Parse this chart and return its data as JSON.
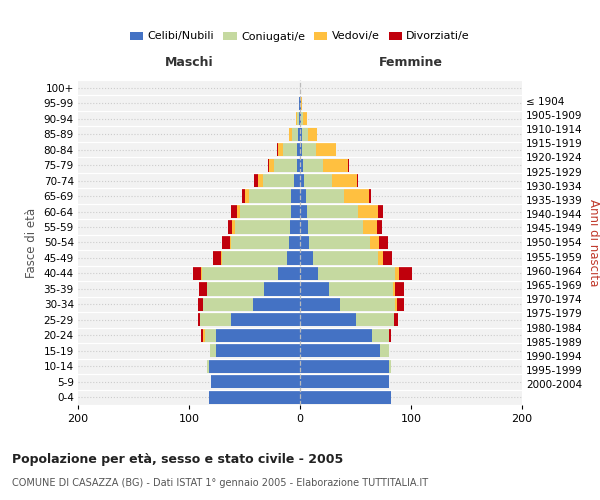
{
  "age_groups": [
    "100+",
    "95-99",
    "90-94",
    "85-89",
    "80-84",
    "75-79",
    "70-74",
    "65-69",
    "60-64",
    "55-59",
    "50-54",
    "45-49",
    "40-44",
    "35-39",
    "30-34",
    "25-29",
    "20-24",
    "15-19",
    "10-14",
    "5-9",
    "0-4"
  ],
  "birth_years": [
    "≤ 1904",
    "1905-1909",
    "1910-1914",
    "1915-1919",
    "1920-1924",
    "1925-1929",
    "1930-1934",
    "1935-1939",
    "1940-1944",
    "1945-1949",
    "1950-1954",
    "1955-1959",
    "1960-1964",
    "1965-1969",
    "1970-1974",
    "1975-1979",
    "1980-1984",
    "1985-1989",
    "1990-1994",
    "1995-1999",
    "2000-2004"
  ],
  "male": {
    "celibi": [
      0,
      1,
      1,
      2,
      3,
      3,
      5,
      8,
      8,
      9,
      10,
      12,
      20,
      32,
      42,
      62,
      76,
      76,
      82,
      80,
      82
    ],
    "coniugati": [
      0,
      0,
      2,
      5,
      12,
      20,
      28,
      38,
      46,
      50,
      52,
      58,
      68,
      52,
      45,
      28,
      10,
      5,
      2,
      0,
      0
    ],
    "vedovi": [
      0,
      0,
      1,
      3,
      5,
      5,
      5,
      4,
      3,
      2,
      1,
      1,
      1,
      0,
      0,
      0,
      1,
      0,
      0,
      0,
      0
    ],
    "divorziati": [
      0,
      0,
      0,
      0,
      1,
      1,
      3,
      2,
      5,
      4,
      7,
      7,
      7,
      7,
      5,
      2,
      2,
      0,
      0,
      0,
      0
    ]
  },
  "female": {
    "nubili": [
      0,
      1,
      1,
      2,
      2,
      3,
      4,
      5,
      6,
      7,
      8,
      12,
      16,
      26,
      36,
      50,
      65,
      72,
      80,
      80,
      82
    ],
    "coniugate": [
      0,
      0,
      2,
      5,
      12,
      18,
      25,
      35,
      46,
      50,
      55,
      58,
      70,
      58,
      50,
      35,
      15,
      8,
      2,
      0,
      0
    ],
    "vedove": [
      0,
      1,
      3,
      8,
      18,
      22,
      22,
      22,
      18,
      12,
      8,
      5,
      3,
      2,
      1,
      0,
      0,
      0,
      0,
      0,
      0
    ],
    "divorziate": [
      0,
      0,
      0,
      0,
      0,
      1,
      1,
      2,
      5,
      5,
      8,
      8,
      12,
      8,
      7,
      3,
      2,
      0,
      0,
      0,
      0
    ]
  },
  "colors": {
    "celibi": "#4472c4",
    "coniugati": "#c5d9a0",
    "vedovi": "#ffc040",
    "divorziati": "#c0000c"
  },
  "xlim": 200,
  "title": "Popolazione per età, sesso e stato civile - 2005",
  "subtitle": "COMUNE DI CASAZZA (BG) - Dati ISTAT 1° gennaio 2005 - Elaborazione TUTTITALIA.IT",
  "ylabel_left": "Fasce di età",
  "ylabel_right": "Anni di nascita",
  "xlabel_left": "Maschi",
  "xlabel_right": "Femmine",
  "legend_labels": [
    "Celibi/Nubili",
    "Coniugati/e",
    "Vedovi/e",
    "Divorziati/e"
  ],
  "bg_color": "#ffffff",
  "plot_bg_color": "#f2f2f2"
}
